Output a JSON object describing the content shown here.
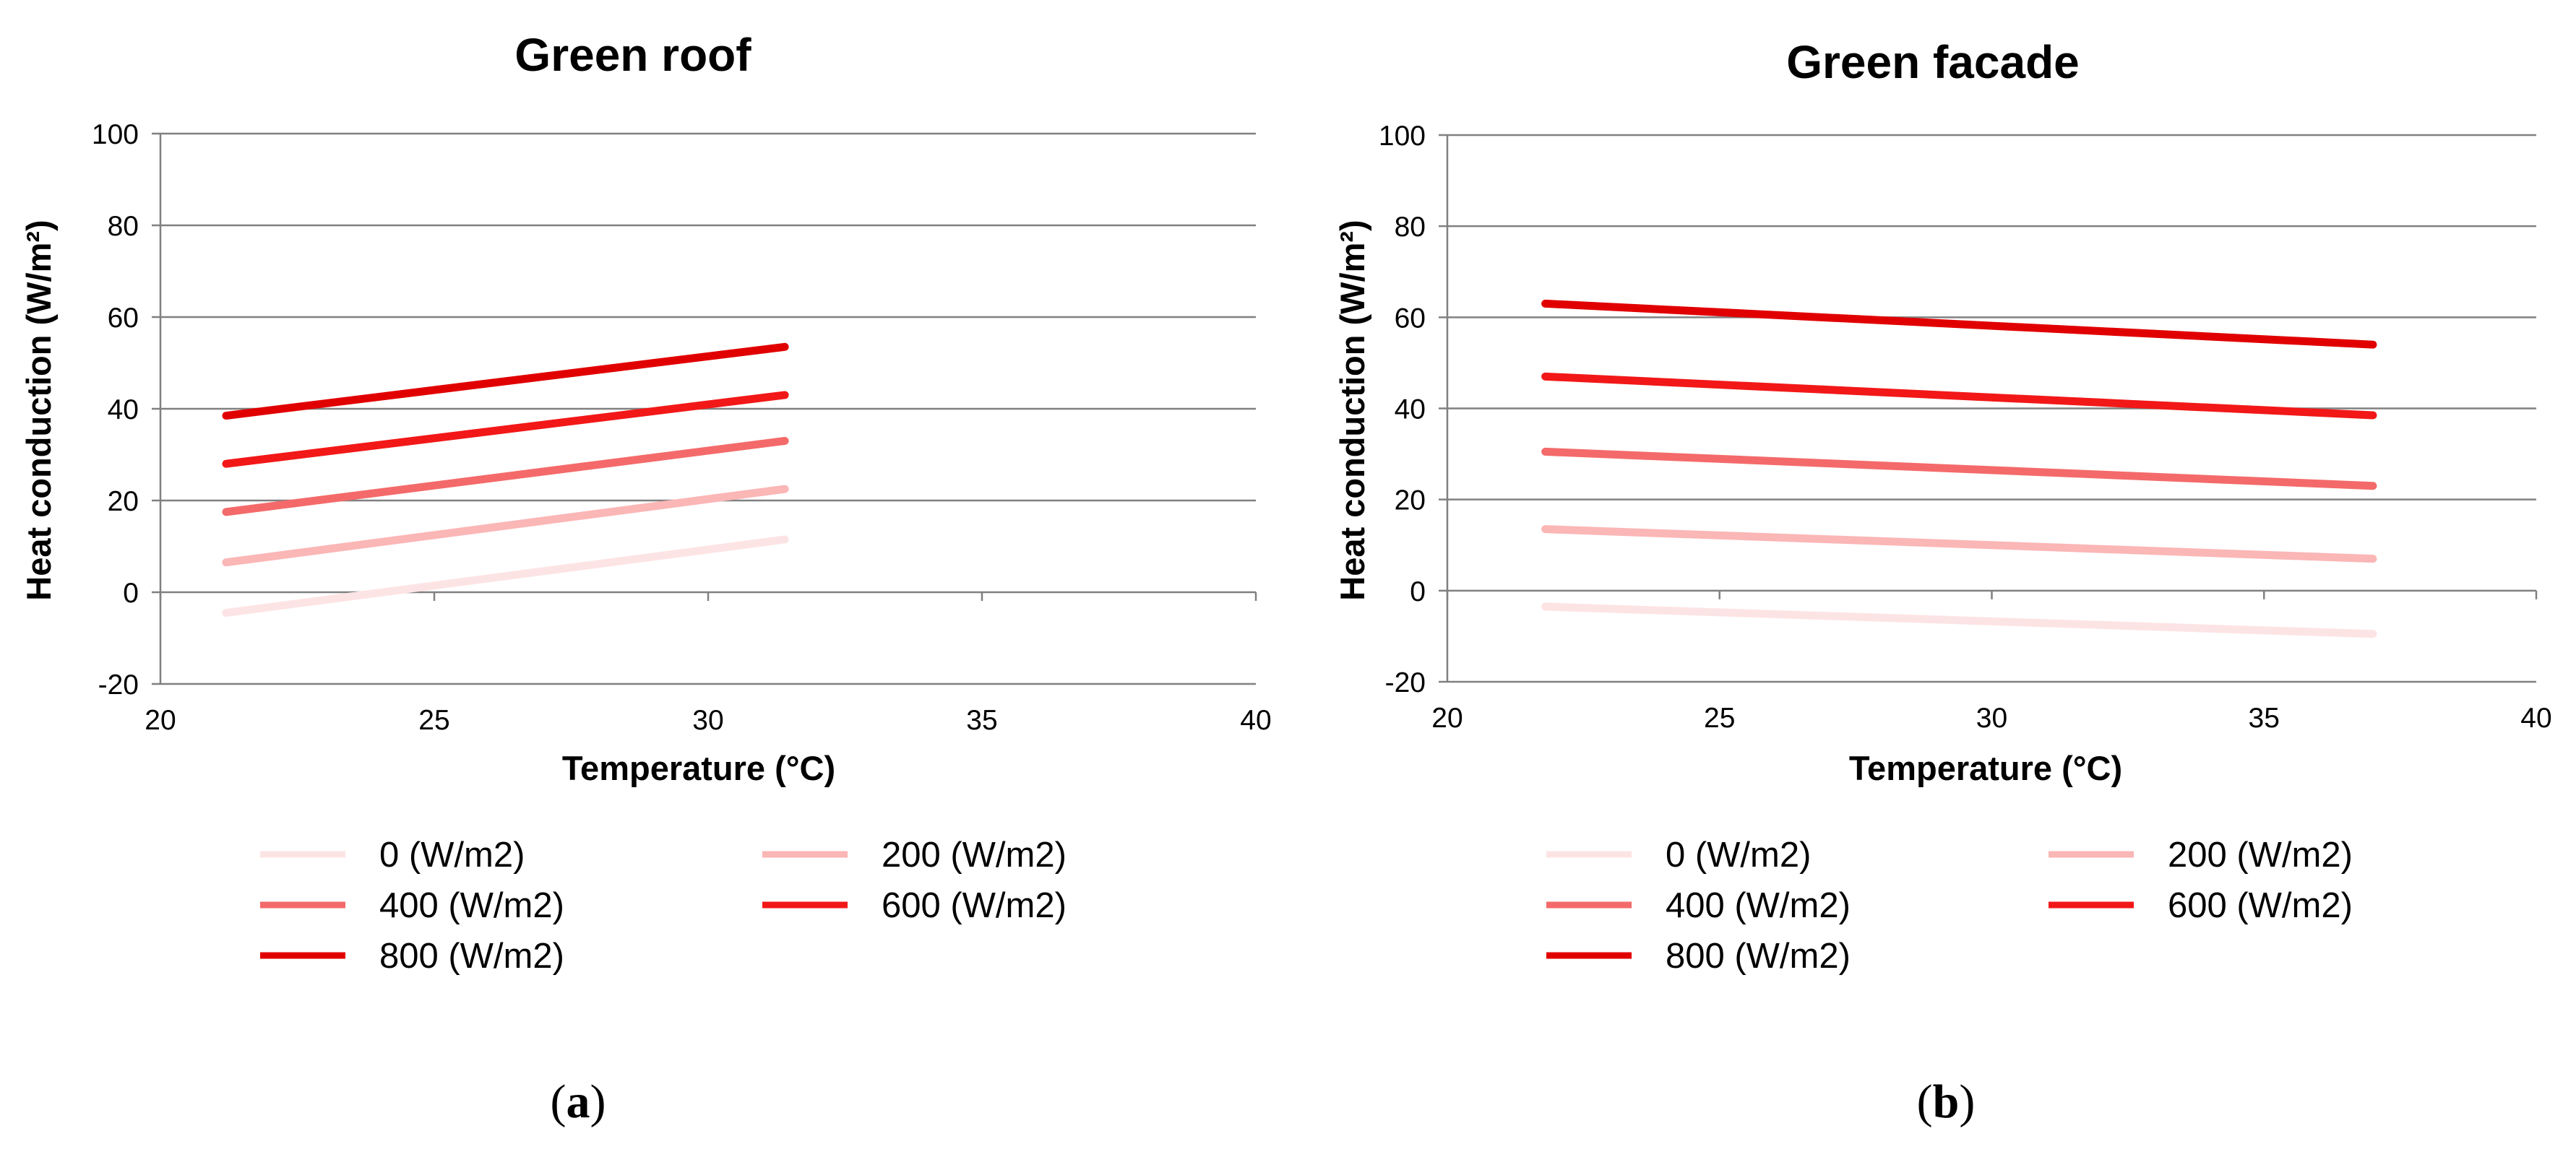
{
  "chart_data": [
    {
      "type": "line",
      "title": "Green roof",
      "xlabel": "Temperature (°C)",
      "ylabel": "Heat conduction (W/m²)",
      "xlim": [
        20,
        40
      ],
      "ylim": [
        -20,
        100
      ],
      "xticks": [
        "20",
        "25",
        "30",
        "35",
        "40"
      ],
      "yticks": [
        "100",
        "80",
        "60",
        "40",
        "20",
        "0",
        "-20"
      ],
      "panel_label": "(a)",
      "panel_letter": "a",
      "series": [
        {
          "name": "0 (W/m2)",
          "color": "#fde4e4",
          "x": [
            21.2,
            31.4
          ],
          "values": [
            -4.5,
            11.5
          ]
        },
        {
          "name": "200 (W/m2)",
          "color": "#fbb6b6",
          "x": [
            21.2,
            31.4
          ],
          "values": [
            6.5,
            22.5
          ]
        },
        {
          "name": "400 (W/m2)",
          "color": "#f46a6a",
          "x": [
            21.2,
            31.4
          ],
          "values": [
            17.5,
            33.0
          ]
        },
        {
          "name": "600 (W/m2)",
          "color": "#f21818",
          "x": [
            21.2,
            31.4
          ],
          "values": [
            28.0,
            43.0
          ]
        },
        {
          "name": "800 (W/m2)",
          "color": "#e10000",
          "x": [
            21.2,
            31.4
          ],
          "values": [
            38.5,
            53.5
          ]
        }
      ]
    },
    {
      "type": "line",
      "title": "Green facade",
      "xlabel": "Temperature (°C)",
      "ylabel": "Heat conduction (W/m²)",
      "xlim": [
        20,
        40
      ],
      "ylim": [
        -20,
        100
      ],
      "xticks": [
        "20",
        "25",
        "30",
        "35",
        "40"
      ],
      "yticks": [
        "100",
        "80",
        "60",
        "40",
        "20",
        "0",
        "-20"
      ],
      "panel_label": "(b)",
      "panel_letter": "b",
      "series": [
        {
          "name": "0 (W/m2)",
          "color": "#fde4e4",
          "x": [
            21.8,
            37.0
          ],
          "values": [
            -3.5,
            -9.5
          ]
        },
        {
          "name": "200 (W/m2)",
          "color": "#fbb6b6",
          "x": [
            21.8,
            37.0
          ],
          "values": [
            13.5,
            7.0
          ]
        },
        {
          "name": "400 (W/m2)",
          "color": "#f46a6a",
          "x": [
            21.8,
            37.0
          ],
          "values": [
            30.5,
            23.0
          ]
        },
        {
          "name": "600 (W/m2)",
          "color": "#f21818",
          "x": [
            21.8,
            37.0
          ],
          "values": [
            47.0,
            38.5
          ]
        },
        {
          "name": "800 (W/m2)",
          "color": "#e10000",
          "x": [
            21.8,
            37.0
          ],
          "values": [
            63.0,
            54.0
          ]
        }
      ]
    }
  ]
}
